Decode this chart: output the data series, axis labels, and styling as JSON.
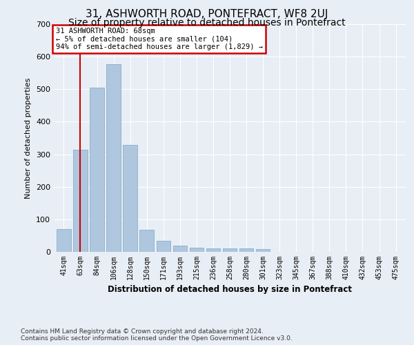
{
  "title": "31, ASHWORTH ROAD, PONTEFRACT, WF8 2UJ",
  "subtitle": "Size of property relative to detached houses in Pontefract",
  "xlabel": "Distribution of detached houses by size in Pontefract",
  "ylabel": "Number of detached properties",
  "categories": [
    "41sqm",
    "63sqm",
    "84sqm",
    "106sqm",
    "128sqm",
    "150sqm",
    "171sqm",
    "193sqm",
    "215sqm",
    "236sqm",
    "258sqm",
    "280sqm",
    "301sqm",
    "323sqm",
    "345sqm",
    "367sqm",
    "388sqm",
    "410sqm",
    "432sqm",
    "453sqm",
    "475sqm"
  ],
  "values": [
    70,
    313,
    505,
    578,
    328,
    68,
    35,
    20,
    13,
    11,
    11,
    10,
    8,
    0,
    0,
    0,
    0,
    0,
    0,
    0,
    0
  ],
  "bar_color": "#aec6de",
  "bar_edge_color": "#8aafc8",
  "vline_x": 1,
  "vline_color": "#cc0000",
  "annotation_text": "31 ASHWORTH ROAD: 68sqm\n← 5% of detached houses are smaller (104)\n94% of semi-detached houses are larger (1,829) →",
  "annotation_box_color": "#cc0000",
  "ylim": [
    0,
    700
  ],
  "yticks": [
    0,
    100,
    200,
    300,
    400,
    500,
    600,
    700
  ],
  "bg_color": "#e8eef5",
  "plot_bg_color": "#e8eef5",
  "footer": "Contains HM Land Registry data © Crown copyright and database right 2024.\nContains public sector information licensed under the Open Government Licence v3.0.",
  "title_fontsize": 11,
  "subtitle_fontsize": 10,
  "footer_fontsize": 6.5
}
